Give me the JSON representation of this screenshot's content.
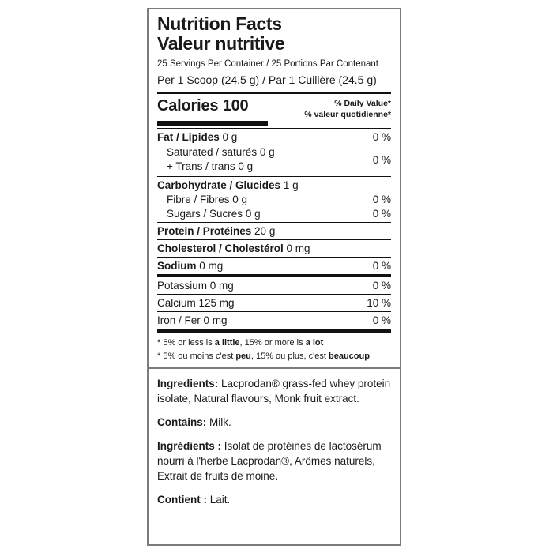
{
  "nutrition_facts": {
    "title_en": "Nutrition Facts",
    "title_fr": "Valeur nutritive",
    "servings_per_container": "25 Servings Per Container / 25 Portions Par Contenant",
    "serving_size": "Per 1 Scoop (24.5 g) / Par 1 Cuillère (24.5 g)",
    "calories": {
      "label": "Calories",
      "value": "100"
    },
    "daily_value_header_en": "% Daily Value*",
    "daily_value_header_fr": "% valeur quotidienne*",
    "rows": {
      "fat": {
        "name": "Fat / Lipides",
        "amount": "0 g",
        "dv": "0 %"
      },
      "saturated_trans": {
        "line1": "Saturated / saturés 0 g",
        "line2": "+ Trans / trans 0 g",
        "dv": "0 %"
      },
      "carbohydrate": {
        "name": "Carbohydrate / Glucides",
        "amount": "1 g"
      },
      "fibre": {
        "name": "Fibre / Fibres",
        "amount": "0 g",
        "dv": "0 %"
      },
      "sugars": {
        "name": "Sugars / Sucres",
        "amount": "0 g",
        "dv": "0 %"
      },
      "protein": {
        "name": "Protein / Protéines",
        "amount": "20 g"
      },
      "cholesterol": {
        "name": "Cholesterol / Cholestérol",
        "amount": "0 mg"
      },
      "sodium": {
        "name": "Sodium",
        "amount": "0 mg",
        "dv": "0 %"
      },
      "potassium": {
        "name": "Potassium",
        "amount": "0 mg",
        "dv": "0 %"
      },
      "calcium": {
        "name": "Calcium",
        "amount": "125 mg",
        "dv": "10 %"
      },
      "iron": {
        "name": "Iron / Fer",
        "amount": "0 mg",
        "dv": "0 %"
      }
    },
    "footnote_en": {
      "part1": "* 5% or less is ",
      "bold1": "a little",
      "part2": ", 15% or more is ",
      "bold2": "a lot"
    },
    "footnote_fr": {
      "part1": "* 5% ou moins c'est ",
      "bold1": "peu",
      "part2": ", 15% ou plus, c'est ",
      "bold2": "beaucoup"
    }
  },
  "ingredients_panel": {
    "ingredients_en": {
      "lead": "Ingredients:",
      "text": "Lacprodan® grass-fed whey protein isolate, Natural flavours, Monk fruit extract."
    },
    "contains_en": {
      "lead": "Contains:",
      "text": "Milk."
    },
    "ingredients_fr": {
      "lead": "Ingrédients :",
      "text": "Isolat de protéines de lactosérum nourri à l'herbe Lacprodan®, Arômes naturels, Extrait de fruits de moine."
    },
    "contains_fr": {
      "lead": "Contient :",
      "text": "Lait."
    }
  },
  "colors": {
    "background": "#ffffff",
    "text": "#1a1a1a",
    "outer_border": "#7b7b7b",
    "rule": "#111111"
  }
}
